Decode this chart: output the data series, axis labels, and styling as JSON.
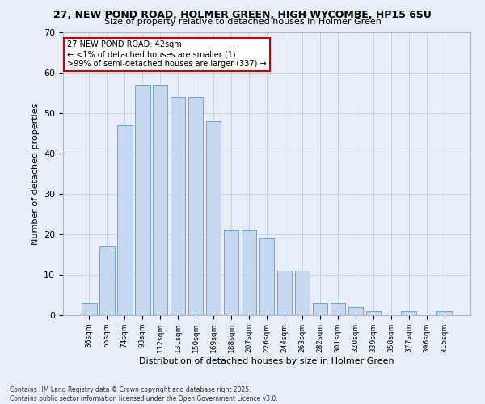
{
  "title_line1": "27, NEW POND ROAD, HOLMER GREEN, HIGH WYCOMBE, HP15 6SU",
  "title_line2": "Size of property relative to detached houses in Holmer Green",
  "xlabel": "Distribution of detached houses by size in Holmer Green",
  "ylabel": "Number of detached properties",
  "categories": [
    "36sqm",
    "55sqm",
    "74sqm",
    "93sqm",
    "112sqm",
    "131sqm",
    "150sqm",
    "169sqm",
    "188sqm",
    "207sqm",
    "226sqm",
    "244sqm",
    "263sqm",
    "282sqm",
    "301sqm",
    "320sqm",
    "339sqm",
    "358sqm",
    "377sqm",
    "396sqm",
    "415sqm"
  ],
  "values": [
    3,
    17,
    47,
    57,
    57,
    54,
    54,
    48,
    21,
    21,
    19,
    11,
    11,
    3,
    3,
    2,
    1,
    0,
    1,
    0,
    1
  ],
  "bar_color": "#c5d8f0",
  "bar_edge_color": "#6aaad4",
  "bg_color": "#e8eef8",
  "annotation_text": "27 NEW POND ROAD: 42sqm\n← <1% of detached houses are smaller (1)\n>99% of semi-detached houses are larger (337) →",
  "annotation_box_color": "#ffffff",
  "annotation_box_edge": "#cc0000",
  "ylim": [
    0,
    70
  ],
  "yticks": [
    0,
    10,
    20,
    30,
    40,
    50,
    60,
    70
  ],
  "footer_line1": "Contains HM Land Registry data © Crown copyright and database right 2025.",
  "footer_line2": "Contains public sector information licensed under the Open Government Licence v3.0."
}
